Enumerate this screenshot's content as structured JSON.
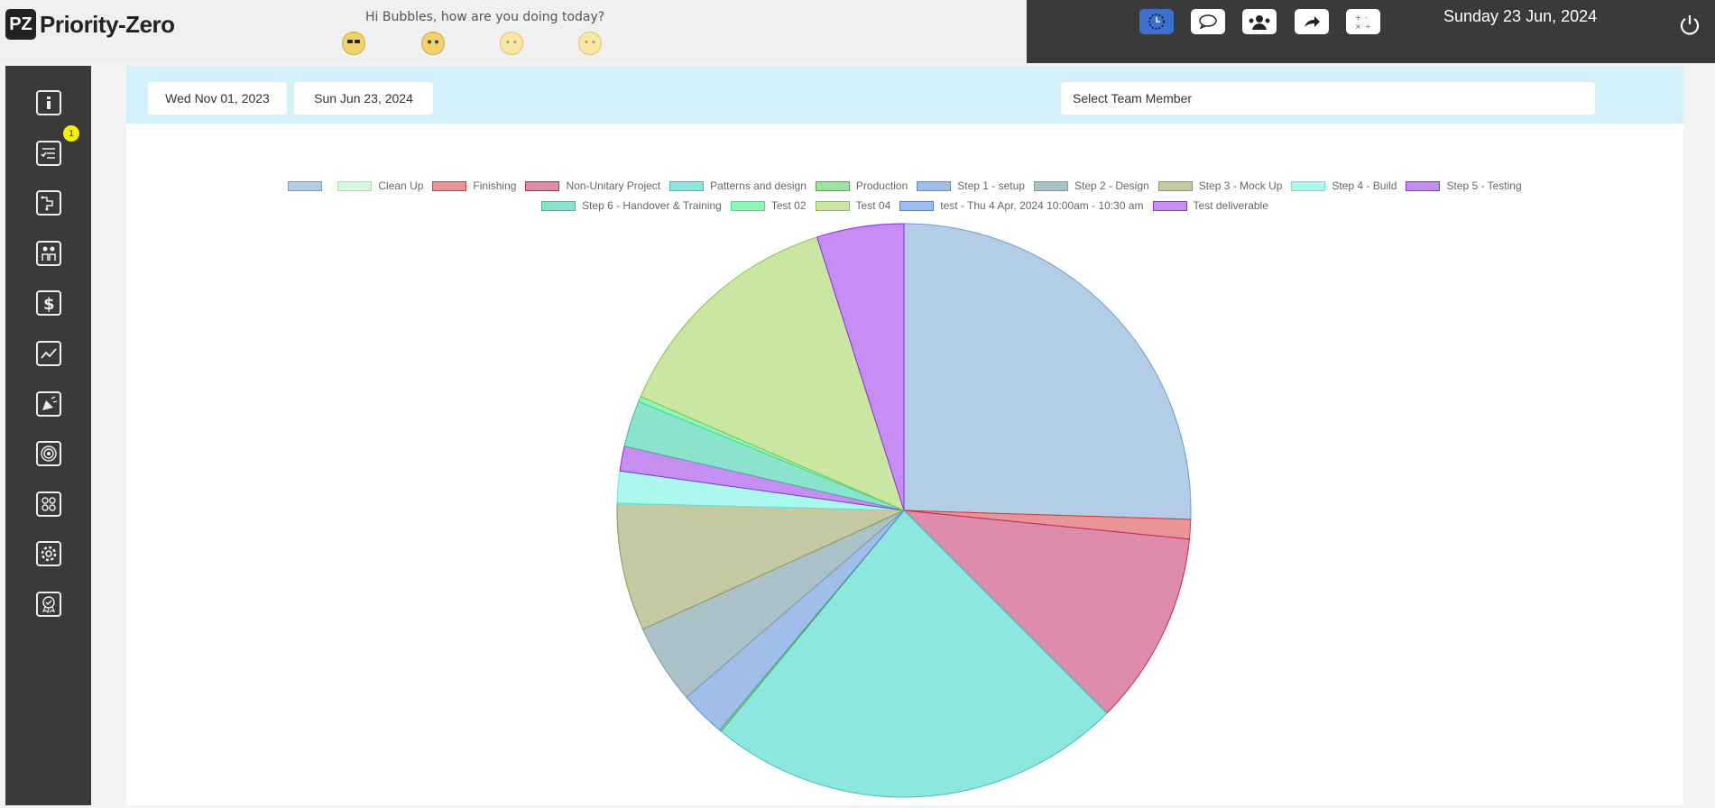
{
  "app": {
    "logo_mark": "PZ",
    "logo_text": "Priority-Zero"
  },
  "header": {
    "greeting": "Hi Bubbles, how are you doing today?",
    "date": "Sunday 23 Jun, 2024",
    "moods": [
      "cool-face",
      "surprised-face",
      "neutral-face",
      "worried-face"
    ]
  },
  "toolbar": {
    "icons": [
      "clock-icon",
      "chat-icon",
      "team-icon",
      "share-icon",
      "calculator-icon"
    ]
  },
  "sidebar": {
    "icons": [
      "info-icon",
      "checklist-icon",
      "workflow-icon",
      "people-icon",
      "dollar-icon",
      "chart-icon",
      "megaphone-icon",
      "target-icon",
      "network-icon",
      "settings-icon",
      "award-icon"
    ],
    "badge": "1"
  },
  "filters": {
    "start_date": "Wed Nov 01, 2023",
    "end_date": "Sun Jun 23, 2024",
    "member_placeholder": "Select Team Member"
  },
  "chart_data": {
    "type": "pie",
    "legend": [
      {
        "name": "",
        "color": "#b4cde6",
        "border": "#6b9cd1",
        "value": 25.5
      },
      {
        "name": "Clean Up",
        "color": "#d8f8dc",
        "border": "#9fe2a9",
        "value": 0
      },
      {
        "name": "Finishing",
        "color": "#e99597",
        "border": "#cf3a40",
        "value": 1.1
      },
      {
        "name": "Non-Unitary Project",
        "color": "#de8bac",
        "border": "#c42455",
        "value": 10.9
      },
      {
        "name": "Patterns and design",
        "color": "#8de7df",
        "border": "#37c2b6",
        "value": 23.5
      },
      {
        "name": "Production",
        "color": "#9fe39c",
        "border": "#3fb53a",
        "value": 0.1
      },
      {
        "name": "Step 1 - setup",
        "color": "#9fbeea",
        "border": "#5b8ad6",
        "value": 2.6
      },
      {
        "name": "Step 2 - Design",
        "color": "#abc1c8",
        "border": "#7e9aa3",
        "value": 4.5
      },
      {
        "name": "Step 3 - Mock Up",
        "color": "#c4c9a1",
        "border": "#8f975b",
        "value": 7.2
      },
      {
        "name": "Step 4 - Build",
        "color": "#aaf8ee",
        "border": "#5ee8d6",
        "value": 1.8
      },
      {
        "name": "Step 5 - Testing",
        "color": "#c68ef1",
        "border": "#8e2fd9",
        "value": 1.4
      },
      {
        "name": "Step 6 - Handover & Training",
        "color": "#8ce3cd",
        "border": "#3dba98",
        "value": 2.6
      },
      {
        "name": "Test 02",
        "color": "#8ff6b9",
        "border": "#3fe07f",
        "value": 0.3
      },
      {
        "name": "Test 04",
        "color": "#c9e7a3",
        "border": "#8cbf4a",
        "value": 13.6
      },
      {
        "name": "test - Thu 4 Apr, 2024 10:00am - 10:30 am",
        "color": "#9fbcf1",
        "border": "#4d7fd6",
        "value": 0
      },
      {
        "name": "Test deliverable",
        "color": "#c78df3",
        "border": "#8a2ee0",
        "value": 4.9
      }
    ]
  }
}
